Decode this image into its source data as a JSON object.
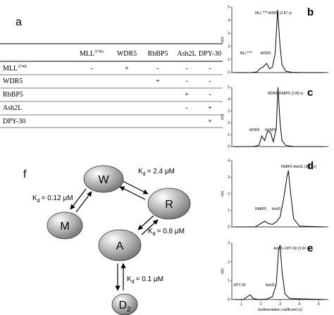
{
  "table": {
    "panel": "a",
    "header": [
      {
        "text": "MLL",
        "sup": "3745"
      },
      {
        "text": "WDR5"
      },
      {
        "text": "RbBP5"
      },
      {
        "text": "Ash2L"
      },
      {
        "text": "DPY-30"
      }
    ],
    "rows": [
      {
        "label": {
          "text": "MLL",
          "sup": "3745"
        },
        "cells": [
          "-",
          "+",
          "-",
          "-",
          "-"
        ]
      },
      {
        "label": {
          "text": "WDR5"
        },
        "cells": [
          null,
          null,
          "+",
          "-",
          "-"
        ]
      },
      {
        "label": {
          "text": "RbBP5"
        },
        "cells": [
          null,
          null,
          null,
          "+",
          "-"
        ]
      },
      {
        "label": {
          "text": "Ash2L"
        },
        "cells": [
          null,
          null,
          null,
          "-",
          "+"
        ]
      },
      {
        "label": {
          "text": "DPY-30"
        },
        "cells": [
          null,
          null,
          null,
          null,
          "+"
        ]
      }
    ]
  },
  "diagram": {
    "panel": "f",
    "nodes": [
      {
        "label": "W"
      },
      {
        "label": "R"
      },
      {
        "label": "M"
      },
      {
        "label": "A"
      },
      {
        "label": "D",
        "sub": "2"
      }
    ],
    "edges": [
      {
        "k": "K",
        "sub": "d",
        "value": "= 2.4 μM"
      },
      {
        "k": "K",
        "sub": "d",
        "value": "= 0.12 μM"
      },
      {
        "k": "K",
        "sub": "d",
        "value": "= 0.8 μM"
      },
      {
        "k": "K",
        "sub": "d",
        "value": "= 0.1 μM"
      }
    ]
  },
  "chart_data": [
    {
      "type": "line",
      "panel": "b",
      "ylabel": "c(s)",
      "color": "#000000",
      "x": [
        0.6,
        1.5,
        1.8,
        1.95,
        2.1,
        2.3,
        2.45,
        2.6,
        2.75,
        2.87,
        3.0,
        3.1,
        3.3,
        3.6,
        4.2,
        5.3
      ],
      "values": [
        0,
        0,
        0.05,
        0.3,
        0.4,
        0.7,
        0.3,
        0.4,
        1.5,
        4.8,
        2.0,
        0.6,
        0.1,
        0.02,
        0,
        0
      ],
      "xlim": [
        0.5,
        5.5
      ],
      "ylim": [
        0,
        5
      ],
      "yticks": [
        0,
        1,
        2,
        3,
        4,
        5
      ],
      "annotations": [
        {
          "text": "MLL",
          "sup": "3745",
          "tail": "-WDR5 (2.87 s)"
        },
        {
          "text": "MLL",
          "sup": "3745"
        },
        {
          "text": "WDR5"
        }
      ]
    },
    {
      "type": "line",
      "panel": "c",
      "ylabel": "c(s)",
      "color": "#000000",
      "x": [
        0.6,
        1.6,
        1.9,
        2.05,
        2.2,
        2.35,
        2.5,
        2.65,
        2.8,
        2.89,
        3.0,
        3.1,
        3.3,
        3.7,
        5.3
      ],
      "values": [
        0,
        0,
        0.1,
        0.9,
        0.5,
        1.3,
        1.2,
        0.4,
        1.5,
        5.0,
        2.0,
        0.5,
        0.1,
        0,
        0
      ],
      "xlim": [
        0.5,
        5.5
      ],
      "ylim": [
        0,
        5
      ],
      "yticks": [
        0,
        1,
        2,
        3,
        4,
        5
      ],
      "annotations": [
        {
          "text": "WDR5-RbBP5 (2.89 s)"
        },
        {
          "text": "WDR5"
        },
        {
          "text": "RbBP5"
        }
      ]
    },
    {
      "type": "line",
      "panel": "d",
      "ylabel": "c(s)",
      "color": "#000000",
      "x": [
        0.6,
        1.7,
        2.0,
        2.2,
        2.4,
        2.6,
        2.8,
        3.0,
        3.2,
        3.35,
        3.43,
        3.55,
        3.7,
        4.0,
        5.3
      ],
      "values": [
        0,
        0,
        0.2,
        0.35,
        0.2,
        0.15,
        0.3,
        0.6,
        1.8,
        3.0,
        3.4,
        2.0,
        0.5,
        0.05,
        0
      ],
      "xlim": [
        0.5,
        5.5
      ],
      "ylim": [
        0,
        4
      ],
      "yticks": [
        0,
        1,
        2,
        3,
        4
      ],
      "annotations": [
        {
          "text": "RbBP5-Ash2L (3.43 s)"
        },
        {
          "text": "RbBP5"
        },
        {
          "text": "Ash2L"
        }
      ]
    },
    {
      "type": "line",
      "panel": "e",
      "ylabel": "c(s)",
      "xlabel": "Sedimentation coefficient (s)",
      "color": "#000000",
      "x": [
        0.6,
        1.1,
        1.3,
        1.45,
        1.6,
        1.9,
        2.3,
        2.6,
        2.8,
        2.92,
        3.0,
        3.1,
        3.25,
        3.5,
        5.3
      ],
      "values": [
        0,
        0,
        0.15,
        0.25,
        0.05,
        0,
        0.02,
        0.15,
        0.8,
        2.6,
        2.9,
        1.5,
        0.3,
        0.05,
        0
      ],
      "xlim": [
        0.5,
        5.5
      ],
      "xticks": [
        1,
        2,
        3,
        4,
        5
      ],
      "ylim": [
        0,
        3
      ],
      "yticks": [
        0,
        1,
        2,
        3
      ],
      "annotations": [
        {
          "text": "Ash2L-DPY-30 (3.00 s)"
        },
        {
          "text": "DPY-30"
        },
        {
          "text": "Ash2L"
        }
      ]
    }
  ]
}
